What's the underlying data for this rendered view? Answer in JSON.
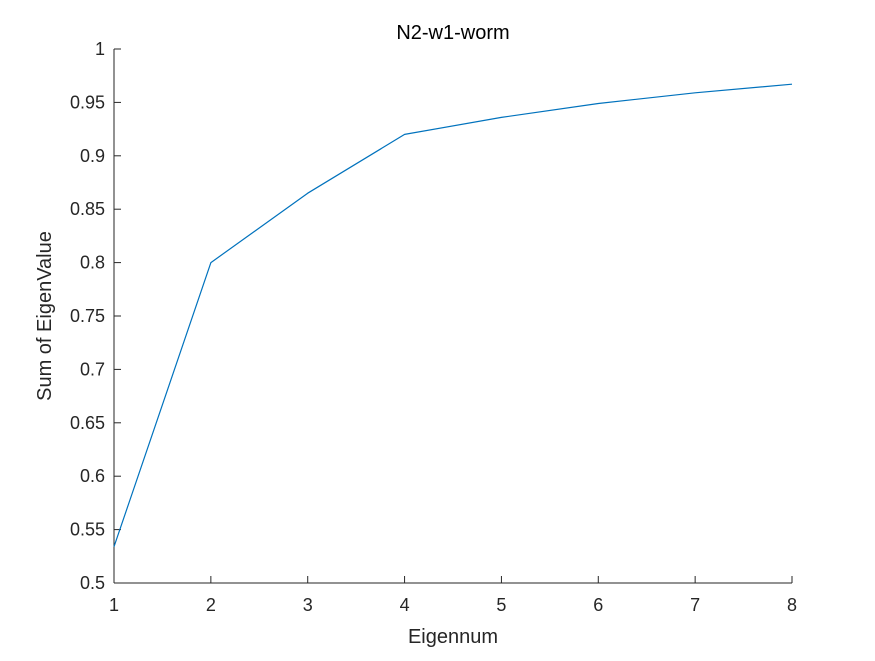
{
  "chart_data": {
    "type": "line",
    "title": "N2-w1-worm",
    "xlabel": "Eigennum",
    "ylabel": "Sum of EigenValue",
    "xlim": [
      1,
      8
    ],
    "ylim": [
      0.5,
      1
    ],
    "x_ticks": [
      1,
      2,
      3,
      4,
      5,
      6,
      7,
      8
    ],
    "y_ticks": [
      0.5,
      0.55,
      0.6,
      0.65,
      0.7,
      0.75,
      0.8,
      0.85,
      0.9,
      0.95,
      1
    ],
    "x_tick_labels": [
      "1",
      "2",
      "3",
      "4",
      "5",
      "6",
      "7",
      "8"
    ],
    "y_tick_labels": [
      "0.5",
      "0.55",
      "0.6",
      "0.65",
      "0.7",
      "0.75",
      "0.8",
      "0.85",
      "0.9",
      "0.95",
      "1"
    ],
    "grid": false,
    "line_color": "#0072BD",
    "series": [
      {
        "x": [
          1,
          2,
          3,
          4,
          5,
          6,
          7,
          8
        ],
        "values": [
          0.534,
          0.8,
          0.865,
          0.92,
          0.936,
          0.949,
          0.959,
          0.967
        ]
      }
    ]
  }
}
